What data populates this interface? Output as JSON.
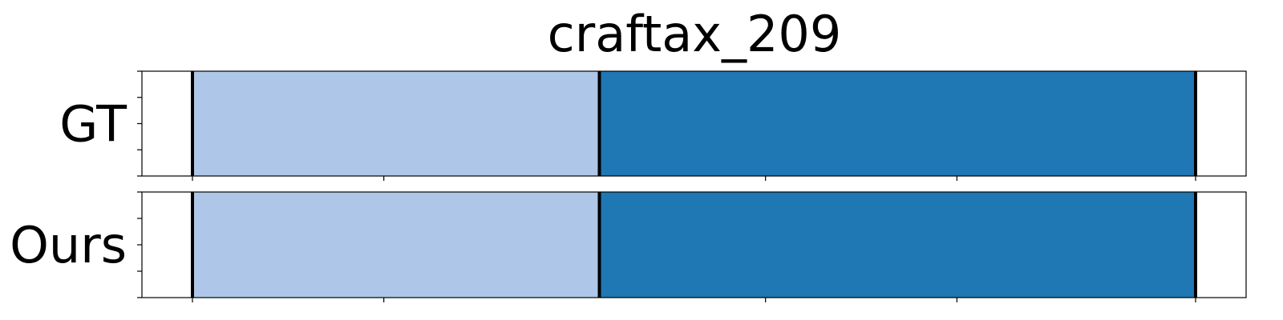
{
  "chart_data": {
    "type": "segmentation-timeline",
    "title": "craftax_209",
    "xlim": [
      0,
      1
    ],
    "rows": [
      {
        "label": "GT",
        "segments": [
          {
            "start": 0.046,
            "end": 0.433,
            "color": "#aec7e8"
          },
          {
            "start": 0.433,
            "end": 1.0,
            "color": "#1f77b4"
          }
        ],
        "boundaries": [
          0.046,
          0.433,
          1.0
        ]
      },
      {
        "label": "Ours",
        "segments": [
          {
            "start": 0.046,
            "end": 0.433,
            "color": "#aec7e8"
          },
          {
            "start": 0.433,
            "end": 1.0,
            "color": "#1f77b4"
          }
        ],
        "boundaries": [
          0.046,
          0.433,
          1.0
        ]
      }
    ],
    "xticks": [
      0.046,
      0.228,
      0.591,
      0.773,
      1.0
    ],
    "yticks_per_row": 5,
    "grid": false,
    "legend": "none"
  }
}
